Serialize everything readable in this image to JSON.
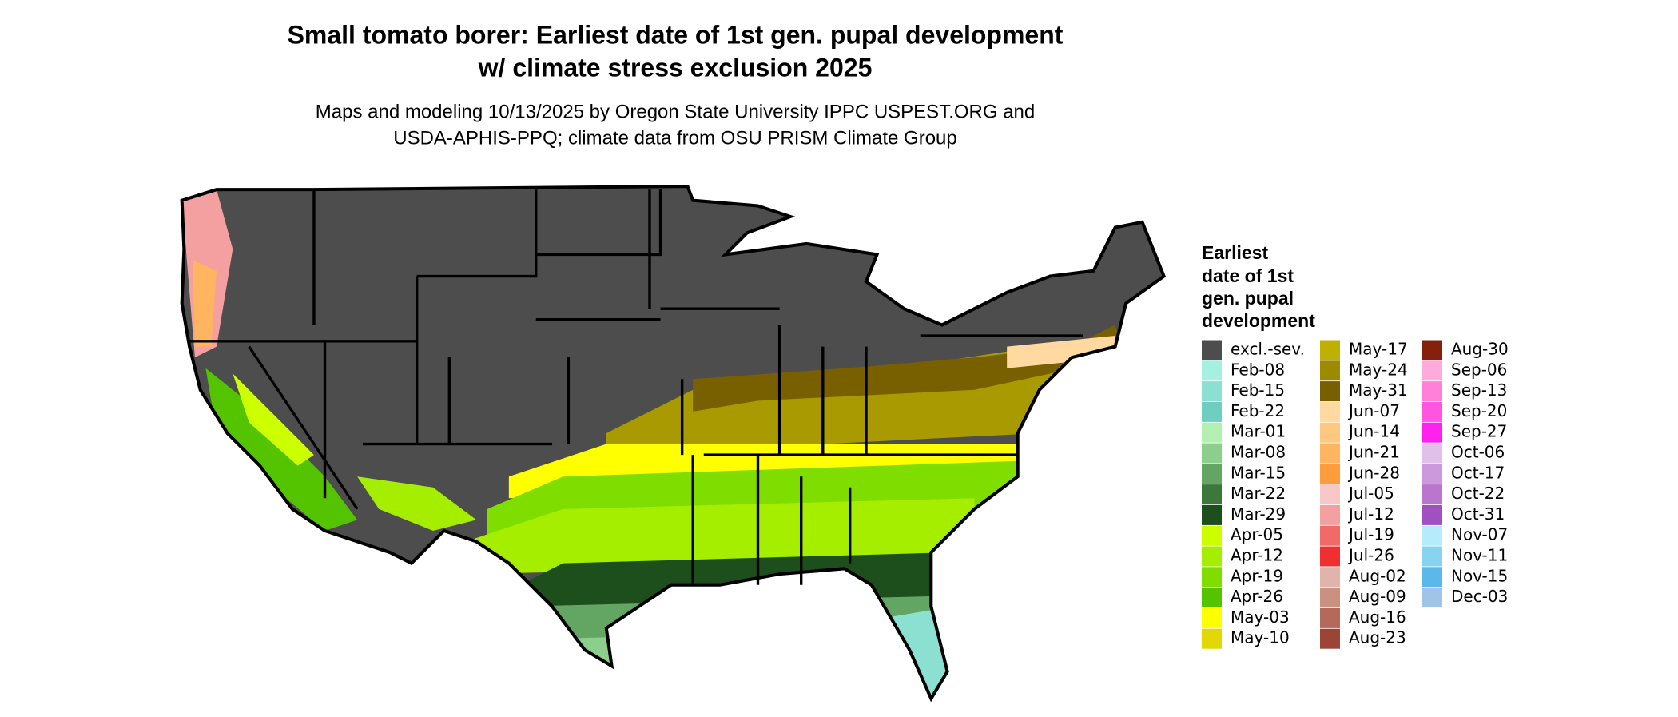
{
  "header": {
    "title_lines": [
      "Small tomato borer: Earliest date of 1st gen. pupal development",
      "w/ climate stress exclusion 2025"
    ],
    "subtitle_lines": [
      "Maps and modeling 10/13/2025 by Oregon State University IPPC USPEST.ORG and",
      "USDA-APHIS-PPQ; climate data from OSU PRISM Climate Group"
    ]
  },
  "legend": {
    "title_lines": [
      "Earliest",
      "date of 1st",
      "gen. pupal",
      "development"
    ],
    "columns": [
      [
        {
          "label": "excl.-sev.",
          "color": "#4d4d4d"
        },
        {
          "label": "Feb-08",
          "color": "#a6f0e0"
        },
        {
          "label": "Feb-15",
          "color": "#8ce0d2"
        },
        {
          "label": "Feb-22",
          "color": "#6ecfc0"
        },
        {
          "label": "Mar-01",
          "color": "#b4f0b4"
        },
        {
          "label": "Mar-08",
          "color": "#8ccf8c"
        },
        {
          "label": "Mar-15",
          "color": "#63a563"
        },
        {
          "label": "Mar-22",
          "color": "#3c783c"
        },
        {
          "label": "Mar-29",
          "color": "#1c4f1c"
        },
        {
          "label": "Apr-05",
          "color": "#ccff00"
        },
        {
          "label": "Apr-12",
          "color": "#a6ee00"
        },
        {
          "label": "Apr-19",
          "color": "#80dd00"
        },
        {
          "label": "Apr-26",
          "color": "#55c400"
        },
        {
          "label": "May-03",
          "color": "#ffff00"
        },
        {
          "label": "May-10",
          "color": "#e0d800"
        }
      ],
      [
        {
          "label": "May-17",
          "color": "#bfb000"
        },
        {
          "label": "May-24",
          "color": "#9c8a00"
        },
        {
          "label": "May-31",
          "color": "#786000"
        },
        {
          "label": "Jun-07",
          "color": "#ffd9a0"
        },
        {
          "label": "Jun-14",
          "color": "#ffc880"
        },
        {
          "label": "Jun-21",
          "color": "#ffb460"
        },
        {
          "label": "Jun-28",
          "color": "#ff9c3c"
        },
        {
          "label": "Jul-05",
          "color": "#f8c8c8"
        },
        {
          "label": "Jul-12",
          "color": "#f4a0a0"
        },
        {
          "label": "Jul-19",
          "color": "#f06a6a"
        },
        {
          "label": "Jul-26",
          "color": "#f03030"
        },
        {
          "label": "Aug-02",
          "color": "#e0b4aa"
        },
        {
          "label": "Aug-09",
          "color": "#cc9080"
        },
        {
          "label": "Aug-16",
          "color": "#b46a5a"
        },
        {
          "label": "Aug-23",
          "color": "#9c4436"
        }
      ],
      [
        {
          "label": "Aug-30",
          "color": "#84200c"
        },
        {
          "label": "Sep-06",
          "color": "#ffaadc"
        },
        {
          "label": "Sep-13",
          "color": "#ff80d8"
        },
        {
          "label": "Sep-20",
          "color": "#ff55e0"
        },
        {
          "label": "Sep-27",
          "color": "#ff22ee"
        },
        {
          "label": "Oct-06",
          "color": "#e0c0e8"
        },
        {
          "label": "Oct-17",
          "color": "#cc99dd"
        },
        {
          "label": "Oct-22",
          "color": "#b877cc"
        },
        {
          "label": "Oct-31",
          "color": "#a050c0"
        },
        {
          "label": "Nov-07",
          "color": "#b4ecfc"
        },
        {
          "label": "Nov-11",
          "color": "#88d4f0"
        },
        {
          "label": "Nov-15",
          "color": "#5cb8e8"
        },
        {
          "label": "Dec-03",
          "color": "#a0c4e8"
        }
      ]
    ]
  }
}
